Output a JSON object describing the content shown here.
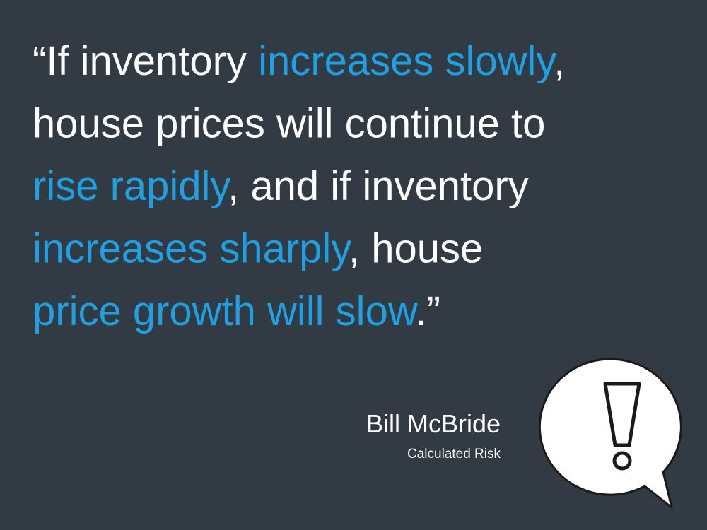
{
  "quote": {
    "lines": [
      [
        {
          "text": "“If inventory ",
          "highlight": false
        },
        {
          "text": "increases slowly",
          "highlight": true
        },
        {
          "text": ",",
          "highlight": false
        }
      ],
      [
        {
          "text": "house prices will continue to",
          "highlight": false
        }
      ],
      [
        {
          "text": "rise rapidly",
          "highlight": true
        },
        {
          "text": ", and if inventory",
          "highlight": false
        }
      ],
      [
        {
          "text": "increases sharply",
          "highlight": true
        },
        {
          "text": ", house",
          "highlight": false
        }
      ],
      [
        {
          "text": "price growth will slow",
          "highlight": true
        },
        {
          "text": ".”",
          "highlight": false
        }
      ]
    ]
  },
  "attribution": {
    "author": "Bill McBride",
    "source": "Calculated Risk"
  }
}
